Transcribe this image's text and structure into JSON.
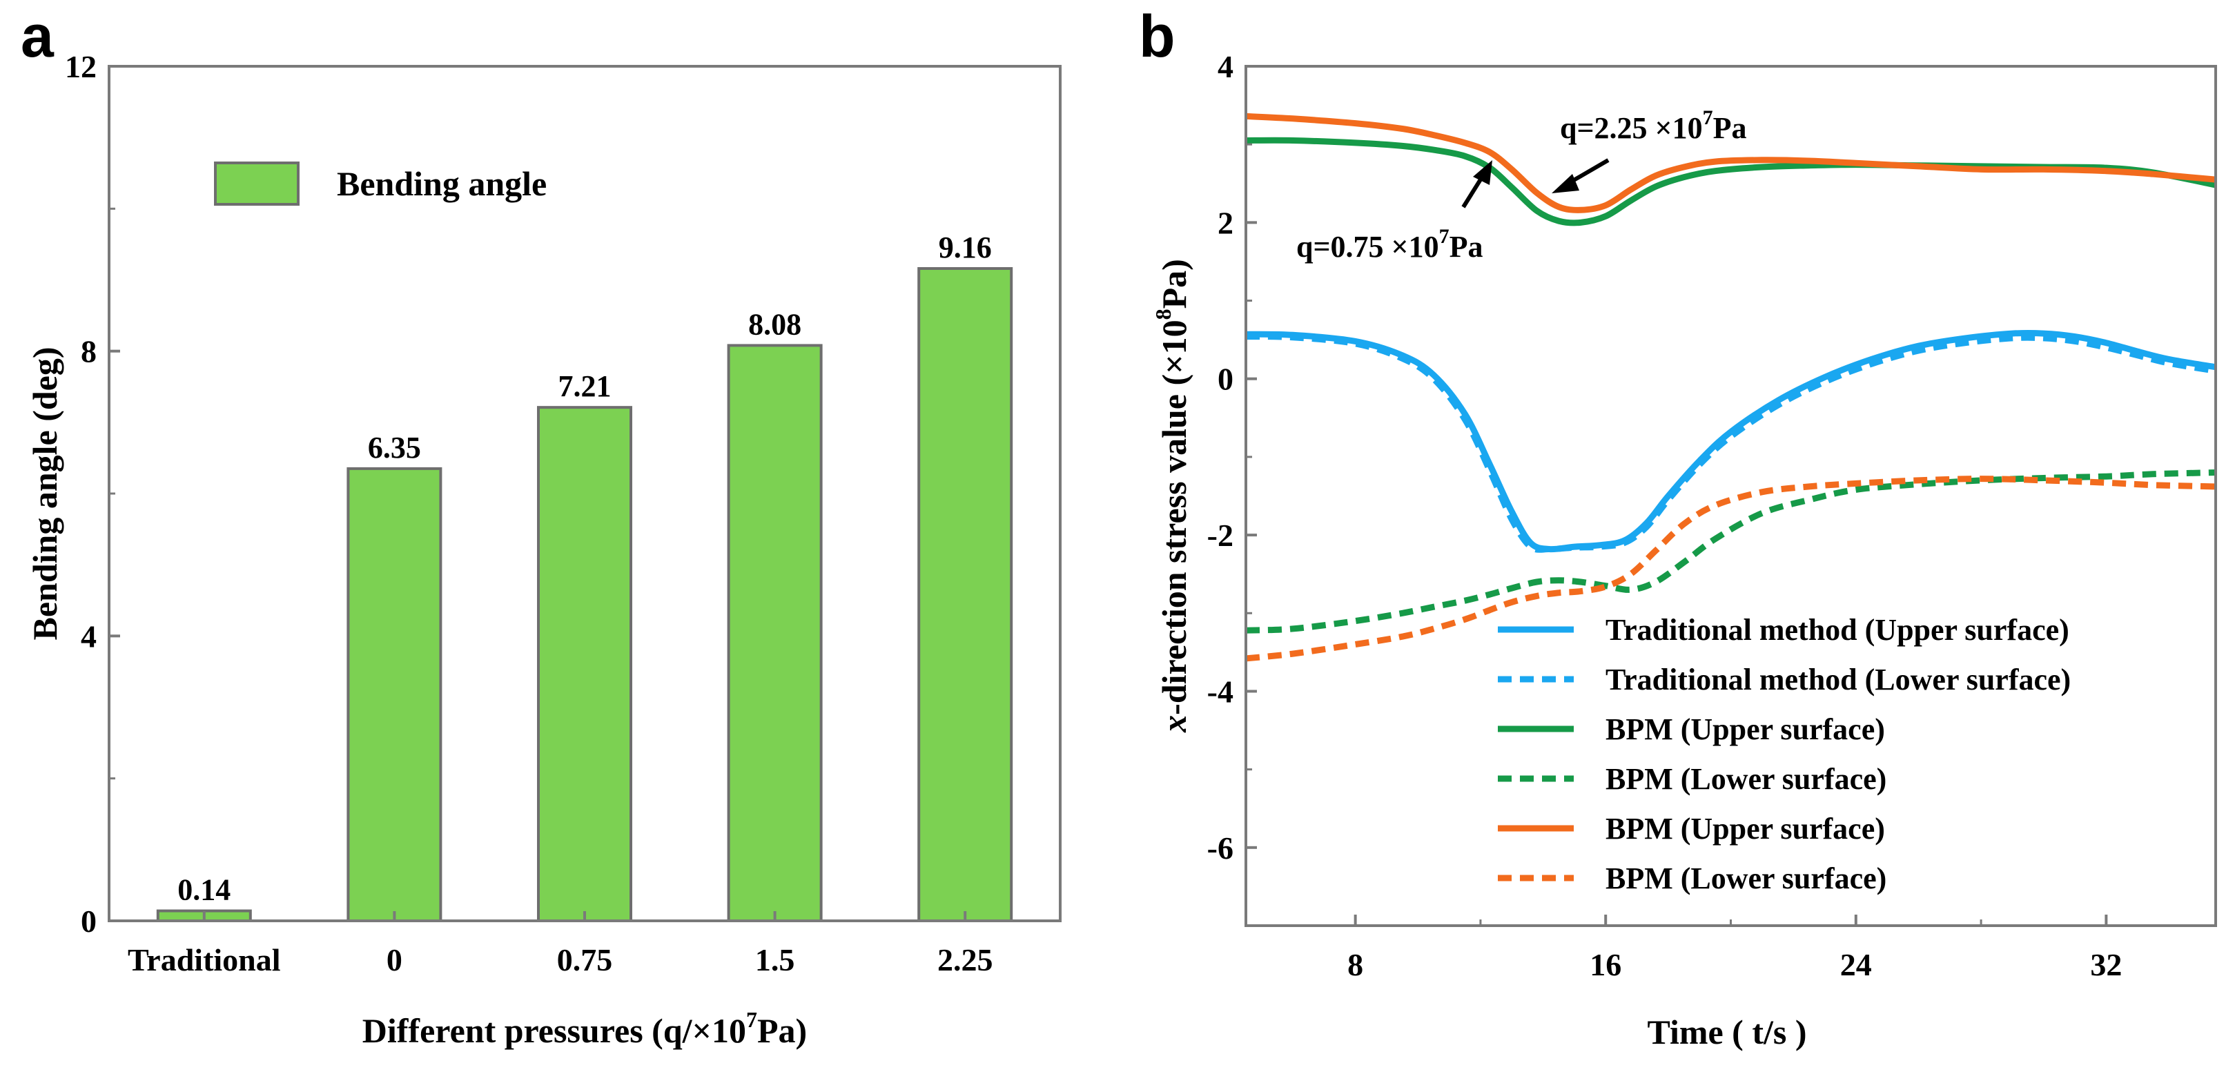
{
  "chart_data": [
    {
      "type": "bar",
      "panel_label": "a",
      "categories": [
        "Traditional",
        "0",
        "0.75",
        "1.5",
        "2.25"
      ],
      "values": [
        0.14,
        6.35,
        7.21,
        8.08,
        9.16
      ],
      "value_labels": [
        "0.14",
        "6.35",
        "7.21",
        "8.08",
        "9.16"
      ],
      "xlabel": "Different pressures (q/×10",
      "xlabel_sup": "7",
      "xlabel_end": "Pa)",
      "ylabel": "Bending angle (deg)",
      "ylim": [
        0,
        12
      ],
      "yticks": [
        0,
        4,
        8,
        12
      ],
      "ytick_labels": [
        "0",
        "4",
        "8",
        "12"
      ],
      "legend": [
        {
          "name": "Bending angle",
          "color": "#7cd152"
        }
      ],
      "legend_position": "top-left",
      "bar_color": "#7cd152",
      "bar_edge_color": "#6e6e6e"
    },
    {
      "type": "line",
      "panel_label": "b",
      "xlabel": "Time ( t/s )",
      "ylabel_italic": "x",
      "ylabel": "-direction stress value (×10",
      "ylabel_sup": "8",
      "ylabel_end": "Pa)",
      "xlim": [
        4.5,
        35.5
      ],
      "ylim": [
        -7,
        4
      ],
      "xticks": [
        8,
        16,
        24,
        32
      ],
      "xtick_labels": [
        "8",
        "16",
        "24",
        "32"
      ],
      "yticks": [
        -6,
        -4,
        -2,
        0,
        2,
        4
      ],
      "ytick_labels": [
        "-6",
        "-4",
        "-2",
        "0",
        "2",
        "4"
      ],
      "legend_position": "bottom-right",
      "series": [
        {
          "name": "Traditional method (Upper surface)",
          "color": "#1aa7f0",
          "dash": "solid",
          "x": [
            4.5,
            6,
            8,
            9.5,
            10.5,
            11.5,
            12.3,
            13,
            13.6,
            14.2,
            15,
            15.8,
            16.6,
            17.3,
            18,
            19,
            20,
            21.5,
            23,
            24.5,
            26,
            27.5,
            29,
            30,
            31,
            32,
            33,
            34,
            35.5
          ],
          "y": [
            0.57,
            0.56,
            0.48,
            0.3,
            0.05,
            -0.45,
            -1.1,
            -1.7,
            -2.1,
            -2.18,
            -2.15,
            -2.13,
            -2.07,
            -1.85,
            -1.5,
            -1.05,
            -0.68,
            -0.28,
            0.02,
            0.25,
            0.42,
            0.52,
            0.58,
            0.58,
            0.54,
            0.46,
            0.35,
            0.25,
            0.15
          ]
        },
        {
          "name": "Traditional method (Lower surface)",
          "color": "#1aa7f0",
          "dash": "dashed",
          "x": [
            4.5,
            6,
            8,
            9.5,
            10.5,
            11.5,
            12.3,
            13,
            13.6,
            14.2,
            15,
            15.8,
            16.6,
            17.3,
            18,
            19,
            20,
            21.5,
            23,
            24.5,
            26,
            27.5,
            29,
            30,
            31,
            32,
            33,
            34,
            35.5
          ],
          "y": [
            0.54,
            0.53,
            0.45,
            0.26,
            0.0,
            -0.52,
            -1.18,
            -1.8,
            -2.15,
            -2.18,
            -2.16,
            -2.15,
            -2.1,
            -1.9,
            -1.55,
            -1.1,
            -0.74,
            -0.34,
            -0.04,
            0.19,
            0.36,
            0.46,
            0.52,
            0.52,
            0.48,
            0.4,
            0.3,
            0.2,
            0.1
          ]
        },
        {
          "name": "BPM (Upper surface)",
          "color": "#169a48",
          "dash": "solid",
          "x": [
            4.5,
            6,
            8,
            9.5,
            10.5,
            11.5,
            12.3,
            13,
            13.8,
            14.5,
            15.2,
            16,
            16.8,
            17.6,
            18.5,
            19.5,
            21,
            22.5,
            24,
            26,
            28,
            30,
            32,
            33.5,
            35.5
          ],
          "y": [
            3.05,
            3.05,
            3.02,
            2.98,
            2.93,
            2.85,
            2.7,
            2.45,
            2.15,
            2.02,
            2.0,
            2.08,
            2.28,
            2.46,
            2.58,
            2.66,
            2.71,
            2.73,
            2.74,
            2.73,
            2.72,
            2.71,
            2.7,
            2.64,
            2.48
          ]
        },
        {
          "name": "BPM (Lower surface)",
          "color": "#169a48",
          "dash": "dashed",
          "x": [
            4.5,
            6,
            8,
            9.5,
            10.5,
            11.5,
            12.3,
            13,
            13.8,
            14.5,
            15.2,
            16,
            16.8,
            17.6,
            18.5,
            19.5,
            21,
            22.5,
            24,
            26,
            28,
            30,
            32,
            33.5,
            35.5
          ],
          "y": [
            -3.22,
            -3.2,
            -3.1,
            -3.0,
            -2.92,
            -2.84,
            -2.76,
            -2.68,
            -2.6,
            -2.58,
            -2.6,
            -2.65,
            -2.7,
            -2.6,
            -2.35,
            -2.05,
            -1.72,
            -1.55,
            -1.42,
            -1.35,
            -1.3,
            -1.27,
            -1.25,
            -1.22,
            -1.2
          ]
        },
        {
          "name": "BPM (Upper surface)",
          "color": "#f26b1d",
          "dash": "solid",
          "x": [
            4.5,
            6,
            8,
            9.5,
            10.5,
            11.5,
            12.3,
            13,
            13.8,
            14.5,
            15.2,
            16,
            16.8,
            17.6,
            18.5,
            19.5,
            21,
            22.5,
            24,
            26,
            28,
            30,
            32,
            33.5,
            35.5
          ],
          "y": [
            3.36,
            3.33,
            3.27,
            3.2,
            3.12,
            3.02,
            2.9,
            2.68,
            2.38,
            2.2,
            2.16,
            2.22,
            2.42,
            2.6,
            2.71,
            2.78,
            2.8,
            2.79,
            2.76,
            2.72,
            2.68,
            2.68,
            2.66,
            2.62,
            2.55
          ]
        },
        {
          "name": "BPM (Lower surface)",
          "color": "#f26b1d",
          "dash": "dashed",
          "x": [
            4.5,
            6,
            8,
            9.5,
            10.5,
            11.5,
            12.3,
            13,
            13.8,
            14.5,
            15.2,
            16,
            16.8,
            17.6,
            18.5,
            19.5,
            21,
            22.5,
            24,
            26,
            28,
            30,
            32,
            33.5,
            35.5
          ],
          "y": [
            -3.58,
            -3.52,
            -3.4,
            -3.3,
            -3.2,
            -3.08,
            -2.96,
            -2.86,
            -2.78,
            -2.74,
            -2.72,
            -2.66,
            -2.5,
            -2.2,
            -1.86,
            -1.62,
            -1.45,
            -1.38,
            -1.34,
            -1.3,
            -1.28,
            -1.3,
            -1.33,
            -1.36,
            -1.38
          ]
        }
      ],
      "annotations": [
        {
          "text": "q=2.25 ×10",
          "sup": "7",
          "end": "Pa",
          "target_x": 14.8,
          "target_y": 2.28
        },
        {
          "text": "q=0.75 ×10",
          "sup": "7",
          "end": "Pa",
          "target_x": 12.0,
          "target_y": 2.92
        }
      ]
    }
  ]
}
